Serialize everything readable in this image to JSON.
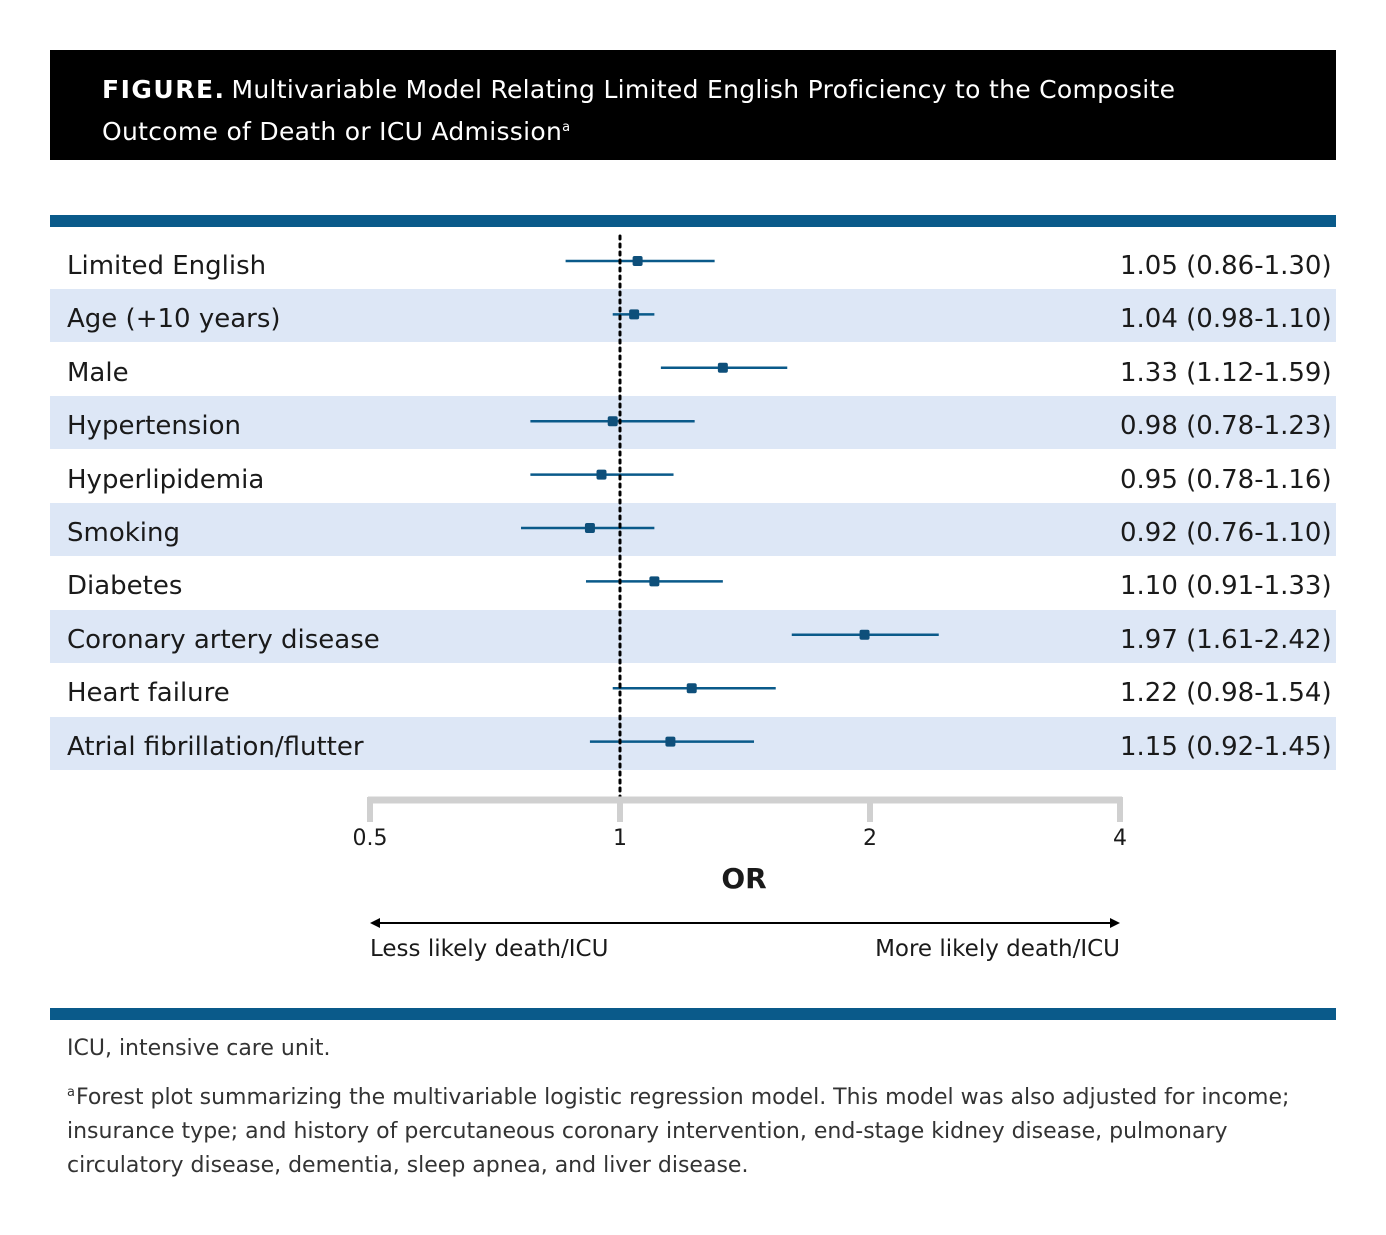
{
  "header": {
    "figure_tag": "FIGURE.",
    "title_line1": "Multivariable Model Relating Limited English Proficiency to the Composite",
    "title_line2": "Outcome of Death or ICU Admission",
    "title_mark": "a"
  },
  "colors": {
    "accent": "#0a5a8a",
    "marker": "#0e4f7a",
    "stripe": "#dde7f6",
    "axis": "#d0d0d0",
    "title_bg": "#000000"
  },
  "chart_data": {
    "type": "forest",
    "xlabel": "OR",
    "x_scale": "log2",
    "xlim": [
      0.5,
      4
    ],
    "x_ticks": [
      0.5,
      1,
      2,
      4
    ],
    "x_tick_labels": [
      "0.5",
      "1",
      "2",
      "4"
    ],
    "reference_line": 1,
    "direction_left": "Less likely death/ICU",
    "direction_right": "More likely death/ICU",
    "rows": [
      {
        "label": "Limited English",
        "or": 1.05,
        "lo": 0.86,
        "hi": 1.3,
        "text": "1.05 (0.86-1.30)"
      },
      {
        "label": "Age (+10 years)",
        "or": 1.04,
        "lo": 0.98,
        "hi": 1.1,
        "text": "1.04 (0.98-1.10)"
      },
      {
        "label": "Male",
        "or": 1.33,
        "lo": 1.12,
        "hi": 1.59,
        "text": "1.33 (1.12-1.59)"
      },
      {
        "label": "Hypertension",
        "or": 0.98,
        "lo": 0.78,
        "hi": 1.23,
        "text": "0.98 (0.78-1.23)"
      },
      {
        "label": "Hyperlipidemia",
        "or": 0.95,
        "lo": 0.78,
        "hi": 1.16,
        "text": "0.95 (0.78-1.16)"
      },
      {
        "label": "Smoking",
        "or": 0.92,
        "lo": 0.76,
        "hi": 1.1,
        "text": "0.92 (0.76-1.10)"
      },
      {
        "label": "Diabetes",
        "or": 1.1,
        "lo": 0.91,
        "hi": 1.33,
        "text": "1.10 (0.91-1.33)"
      },
      {
        "label": "Coronary artery disease",
        "or": 1.97,
        "lo": 1.61,
        "hi": 2.42,
        "text": "1.97 (1.61-2.42)"
      },
      {
        "label": "Heart failure",
        "or": 1.22,
        "lo": 0.98,
        "hi": 1.54,
        "text": "1.22 (0.98-1.54)"
      },
      {
        "label": "Atrial fibrillation/flutter",
        "or": 1.15,
        "lo": 0.92,
        "hi": 1.45,
        "text": "1.15 (0.92-1.45)"
      }
    ]
  },
  "footnotes": {
    "abbrev": "ICU, intensive care unit.",
    "note_mark": "a",
    "note": "Forest plot summarizing the multivariable logistic regression model. This model was also adjusted for income; insurance type; and history of percutaneous coronary intervention, end-stage kidney disease, pulmonary circulatory disease, dementia, sleep apnea, and liver disease."
  }
}
